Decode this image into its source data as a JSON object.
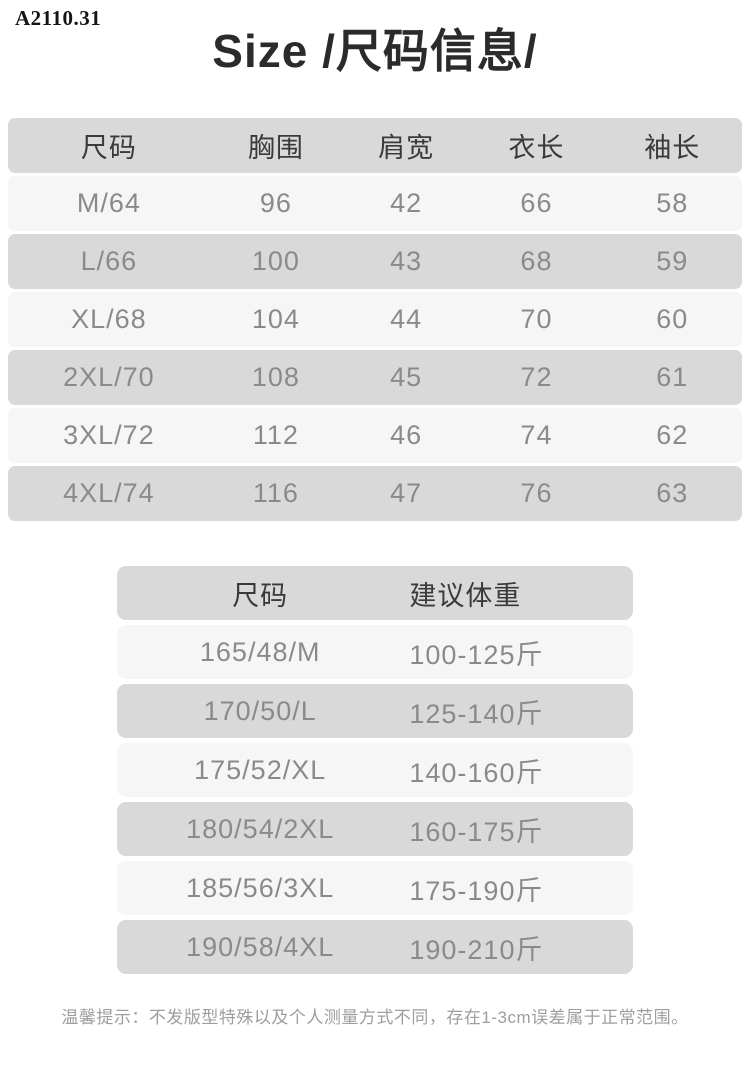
{
  "page": {
    "product_code": "A2110.31",
    "title": "Size /尺码信息/",
    "notice": "温馨提示：不发版型特殊以及个人测量方式不同，存在1-3cm误差属于正常范围。"
  },
  "size_table": {
    "headers": [
      "尺码",
      "胸围",
      "肩宽",
      "衣长",
      "袖长"
    ],
    "rows": [
      [
        "M/64",
        "96",
        "42",
        "66",
        "58"
      ],
      [
        "L/66",
        "100",
        "43",
        "68",
        "59"
      ],
      [
        "XL/68",
        "104",
        "44",
        "70",
        "60"
      ],
      [
        "2XL/70",
        "108",
        "45",
        "72",
        "61"
      ],
      [
        "3XL/72",
        "112",
        "46",
        "74",
        "62"
      ],
      [
        "4XL/74",
        "116",
        "47",
        "76",
        "63"
      ]
    ]
  },
  "weight_table": {
    "headers": [
      "尺码",
      "建议体重"
    ],
    "rows": [
      [
        "165/48/M",
        "100-125斤"
      ],
      [
        "170/50/L",
        "125-140斤"
      ],
      [
        "175/52/XL",
        "140-160斤"
      ],
      [
        "180/54/2XL",
        "160-175斤"
      ],
      [
        "185/56/3XL",
        "175-190斤"
      ],
      [
        "190/58/4XL",
        "190-210斤"
      ]
    ]
  },
  "colors": {
    "row_dark": "#d9d9d9",
    "row_light": "#f6f6f6",
    "header_text": "#3a3a3a",
    "cell_text": "#8a8a8a",
    "title_text": "#2b2b2b",
    "notice_text": "#9e9e9e",
    "background": "#ffffff"
  }
}
